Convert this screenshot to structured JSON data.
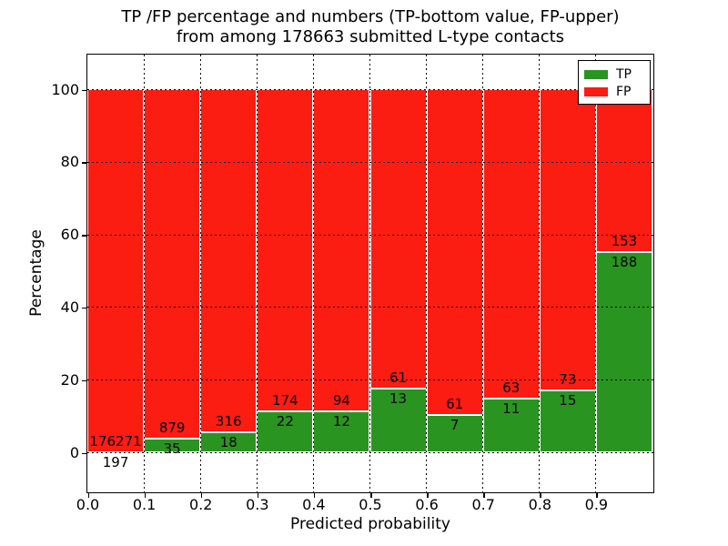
{
  "figure": {
    "title_line1": "TP /FP percentage and numbers (TP-bottom value, FP-upper)",
    "title_line2": "from among 178663 submitted L-type contacts",
    "xlabel": "Predicted probability",
    "ylabel": "Percentage"
  },
  "legend": {
    "position": "upper right",
    "items": [
      {
        "label": "TP",
        "color": "#2a9421"
      },
      {
        "label": "FP",
        "color": "#fb1c12"
      }
    ]
  },
  "chart_data": {
    "type": "bar",
    "stacked": true,
    "normalization": "each bar totals 100%",
    "title": "TP /FP percentage and numbers (TP-bottom value, FP-upper) from among 178663 submitted L-type contacts",
    "xlabel": "Predicted probability",
    "ylabel": "Percentage",
    "xlim": [
      0.0,
      1.0
    ],
    "ylim": [
      -11.3,
      109.5
    ],
    "xticks": [
      "0.0",
      "0.1",
      "0.2",
      "0.3",
      "0.4",
      "0.5",
      "0.6",
      "0.7",
      "0.8",
      "0.9"
    ],
    "yticks": [
      0,
      20,
      40,
      60,
      80,
      100
    ],
    "grid": "dotted",
    "bin_width": 0.1,
    "categories": [
      "0.0-0.1",
      "0.1-0.2",
      "0.2-0.3",
      "0.3-0.4",
      "0.4-0.5",
      "0.5-0.6",
      "0.6-0.7",
      "0.7-0.8",
      "0.8-0.9",
      "0.9-1.0"
    ],
    "series": [
      {
        "name": "TP",
        "color": "#2a9421",
        "counts": [
          197,
          35,
          18,
          22,
          12,
          13,
          7,
          11,
          15,
          188
        ]
      },
      {
        "name": "FP",
        "color": "#fb1c12",
        "counts": [
          176271,
          879,
          316,
          174,
          94,
          61,
          61,
          63,
          73,
          153
        ]
      }
    ]
  }
}
